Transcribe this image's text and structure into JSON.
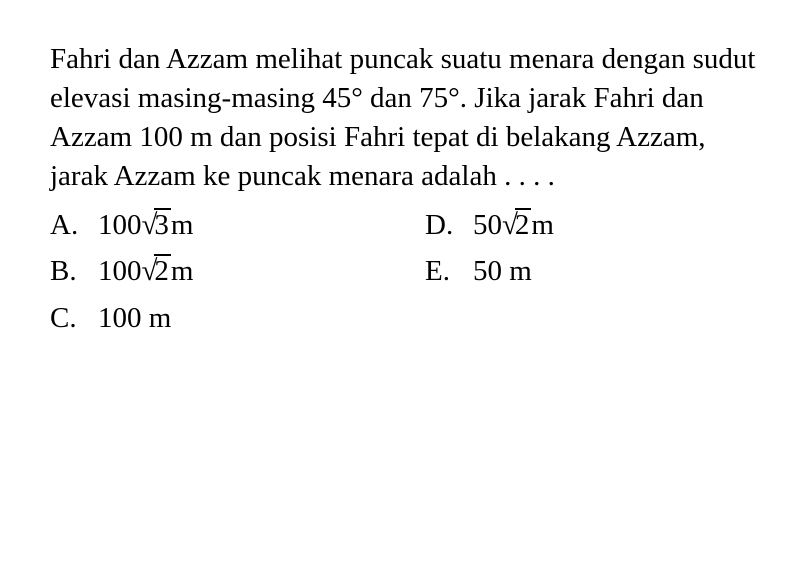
{
  "question": {
    "text": "Fahri dan Azzam melihat puncak suatu menara dengan sudut elevasi masing-masing 45° dan 75°. Jika jarak Fahri dan Azzam 100 m dan posisi Fahri tepat di belakang Azzam, jarak Azzam ke puncak menara adalah . . . .",
    "fontsize": 29,
    "color": "#000000",
    "background": "#ffffff"
  },
  "options": {
    "a": {
      "letter": "A.",
      "prefix": "100",
      "sqrt": "3",
      "suffix": " m"
    },
    "b": {
      "letter": "B.",
      "prefix": "100",
      "sqrt": "2",
      "suffix": " m"
    },
    "c": {
      "letter": "C.",
      "prefix": "100 m",
      "sqrt": "",
      "suffix": ""
    },
    "d": {
      "letter": "D.",
      "prefix": "50",
      "sqrt": "2",
      "suffix": " m"
    },
    "e": {
      "letter": "E.",
      "prefix": "50 m",
      "sqrt": "",
      "suffix": ""
    }
  }
}
